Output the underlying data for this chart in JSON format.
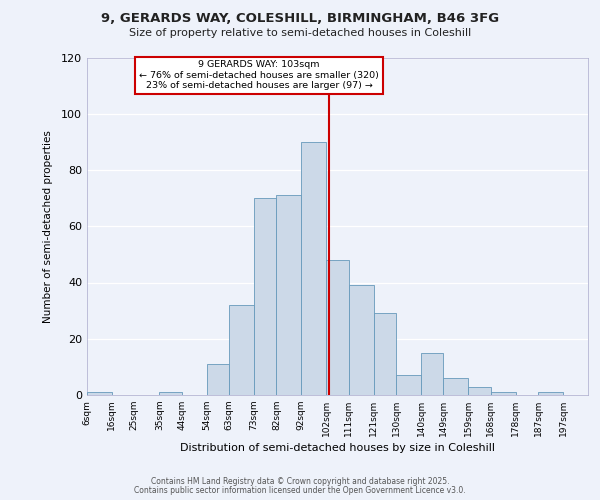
{
  "title1": "9, GERARDS WAY, COLESHILL, BIRMINGHAM, B46 3FG",
  "title2": "Size of property relative to semi-detached houses in Coleshill",
  "xlabel": "Distribution of semi-detached houses by size in Coleshill",
  "ylabel": "Number of semi-detached properties",
  "bin_labels": [
    "6sqm",
    "16sqm",
    "25sqm",
    "35sqm",
    "44sqm",
    "54sqm",
    "63sqm",
    "73sqm",
    "82sqm",
    "92sqm",
    "102sqm",
    "111sqm",
    "121sqm",
    "130sqm",
    "140sqm",
    "149sqm",
    "159sqm",
    "168sqm",
    "178sqm",
    "187sqm",
    "197sqm"
  ],
  "bin_edges": [
    6,
    16,
    25,
    35,
    44,
    54,
    63,
    73,
    82,
    92,
    102,
    111,
    121,
    130,
    140,
    149,
    159,
    168,
    178,
    187,
    197
  ],
  "bar_heights": [
    1,
    0,
    0,
    1,
    0,
    11,
    32,
    70,
    71,
    90,
    48,
    39,
    29,
    7,
    15,
    6,
    3,
    1,
    0,
    1
  ],
  "bar_color": "#ccd9e8",
  "bar_edge_color": "#6699bb",
  "property_value": 103,
  "vline_color": "#cc0000",
  "vline_label": "9 GERARDS WAY: 103sqm",
  "pct_smaller": 76,
  "n_smaller": 320,
  "pct_larger": 23,
  "n_larger": 97,
  "annotation_box_color": "#cc0000",
  "ylim": [
    0,
    120
  ],
  "yticks": [
    0,
    20,
    40,
    60,
    80,
    100,
    120
  ],
  "background_color": "#eef2fa",
  "footer1": "Contains HM Land Registry data © Crown copyright and database right 2025.",
  "footer2": "Contains public sector information licensed under the Open Government Licence v3.0."
}
